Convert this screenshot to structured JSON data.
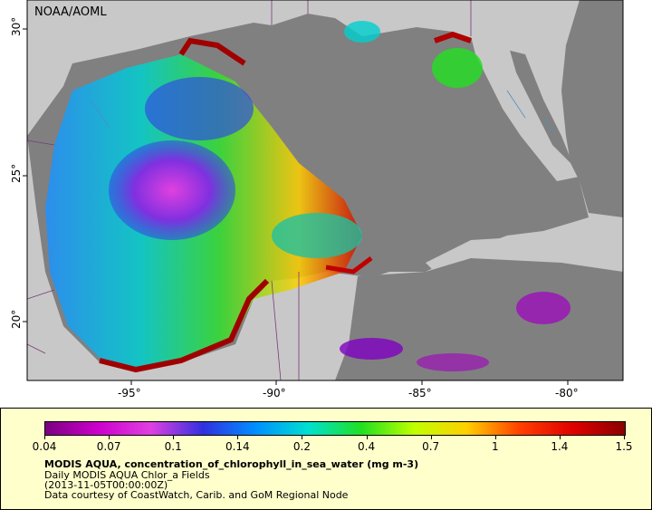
{
  "map": {
    "credit": "NOAA/AOML",
    "lon_labels": [
      "-95°",
      "-90°",
      "-85°",
      "-80°"
    ],
    "lat_labels": [
      "30°",
      "25°",
      "20°"
    ],
    "colors": {
      "land": "#c8c8c8",
      "no_data_ocean": "#808080",
      "background": "#ffffff",
      "coast": "#7a3a7a",
      "rivers": "#4a90c0"
    }
  },
  "legend": {
    "ticks": [
      "0.04",
      "0.07",
      "0.1",
      "0.14",
      "0.2",
      "0.4",
      "0.7",
      "1",
      "1.4",
      "1.5"
    ],
    "colorbar_colors": [
      "#7a0080",
      "#cc00cc",
      "#e040e0",
      "#3030e0",
      "#0090ff",
      "#00e0d0",
      "#20e020",
      "#c0ff00",
      "#ffd000",
      "#ff4000",
      "#e00000",
      "#8a0000"
    ],
    "title": "MODIS AQUA, concentration_of_chlorophyll_in_sea_water (mg m-3)",
    "line2": "Daily MODIS AQUA Chlor_a Fields",
    "line3": "(2013-11-05T00:00:00Z)",
    "line4": "Data courtesy of CoastWatch, Carib. and GoM Regional Node"
  }
}
